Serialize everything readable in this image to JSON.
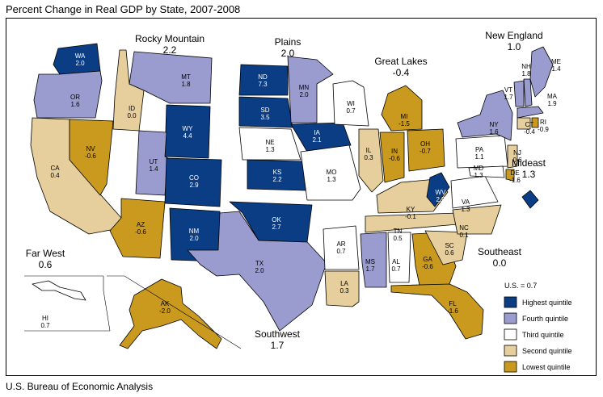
{
  "title": "Percent Change in Real GDP by State, 2007-2008",
  "source": "U.S. Bureau of Economic Analysis",
  "colors": {
    "highest": "#0b3d85",
    "fourth": "#9a9ccf",
    "third": "#ffffff",
    "second": "#e6cf9c",
    "lowest": "#c99a1e"
  },
  "legend": {
    "us_note": "U.S. = 0.7",
    "items": [
      {
        "key": "highest",
        "label": "Highest quintile"
      },
      {
        "key": "fourth",
        "label": "Fourth quintile"
      },
      {
        "key": "third",
        "label": "Third quintile"
      },
      {
        "key": "second",
        "label": "Second quintile"
      },
      {
        "key": "lowest",
        "label": "Lowest quintile"
      }
    ]
  },
  "regions": [
    {
      "name": "Rocky Mountain",
      "value": "2.2"
    },
    {
      "name": "Plains",
      "value": "2.0"
    },
    {
      "name": "Great Lakes",
      "value": "-0.4"
    },
    {
      "name": "New England",
      "value": "1.0"
    },
    {
      "name": "Mideast",
      "value": "1.3"
    },
    {
      "name": "Far West",
      "value": "0.6"
    },
    {
      "name": "Southeast",
      "value": "0.0"
    },
    {
      "name": "Southwest",
      "value": "1.7"
    }
  ],
  "states": [
    {
      "abbr": "WA",
      "value": "2.0",
      "q": "highest"
    },
    {
      "abbr": "OR",
      "value": "1.6",
      "q": "fourth"
    },
    {
      "abbr": "CA",
      "value": "0.4",
      "q": "second"
    },
    {
      "abbr": "NV",
      "value": "-0.6",
      "q": "lowest"
    },
    {
      "abbr": "ID",
      "value": "0.0",
      "q": "second"
    },
    {
      "abbr": "MT",
      "value": "1.8",
      "q": "fourth"
    },
    {
      "abbr": "WY",
      "value": "4.4",
      "q": "highest"
    },
    {
      "abbr": "UT",
      "value": "1.4",
      "q": "fourth"
    },
    {
      "abbr": "CO",
      "value": "2.9",
      "q": "highest"
    },
    {
      "abbr": "AZ",
      "value": "-0.6",
      "q": "lowest"
    },
    {
      "abbr": "NM",
      "value": "2.0",
      "q": "highest"
    },
    {
      "abbr": "ND",
      "value": "7.3",
      "q": "highest"
    },
    {
      "abbr": "SD",
      "value": "3.5",
      "q": "highest"
    },
    {
      "abbr": "NE",
      "value": "1.3",
      "q": "third"
    },
    {
      "abbr": "KS",
      "value": "2.2",
      "q": "highest"
    },
    {
      "abbr": "OK",
      "value": "2.7",
      "q": "highest"
    },
    {
      "abbr": "TX",
      "value": "2.0",
      "q": "fourth"
    },
    {
      "abbr": "MN",
      "value": "2.0",
      "q": "fourth"
    },
    {
      "abbr": "IA",
      "value": "2.1",
      "q": "highest"
    },
    {
      "abbr": "MO",
      "value": "1.3",
      "q": "third"
    },
    {
      "abbr": "AR",
      "value": "0.7",
      "q": "third"
    },
    {
      "abbr": "LA",
      "value": "0.3",
      "q": "second"
    },
    {
      "abbr": "WI",
      "value": "0.7",
      "q": "third"
    },
    {
      "abbr": "IL",
      "value": "0.3",
      "q": "second"
    },
    {
      "abbr": "MI",
      "value": "-1.5",
      "q": "lowest"
    },
    {
      "abbr": "IN",
      "value": "-0.6",
      "q": "lowest"
    },
    {
      "abbr": "OH",
      "value": "-0.7",
      "q": "lowest"
    },
    {
      "abbr": "KY",
      "value": "-0.1",
      "q": "second"
    },
    {
      "abbr": "TN",
      "value": "0.5",
      "q": "second"
    },
    {
      "abbr": "MS",
      "value": "1.7",
      "q": "fourth"
    },
    {
      "abbr": "AL",
      "value": "0.7",
      "q": "third"
    },
    {
      "abbr": "GA",
      "value": "-0.6",
      "q": "lowest"
    },
    {
      "abbr": "FL",
      "value": "-1.6",
      "q": "lowest"
    },
    {
      "abbr": "SC",
      "value": "0.6",
      "q": "second"
    },
    {
      "abbr": "NC",
      "value": "0.1",
      "q": "second"
    },
    {
      "abbr": "VA",
      "value": "1.3",
      "q": "third"
    },
    {
      "abbr": "WV",
      "value": "2.5",
      "q": "highest"
    },
    {
      "abbr": "PA",
      "value": "1.1",
      "q": "third"
    },
    {
      "abbr": "NY",
      "value": "1.6",
      "q": "fourth"
    },
    {
      "abbr": "NJ",
      "value": "0.6",
      "q": "second"
    },
    {
      "abbr": "DE",
      "value": "-1.6",
      "q": "lowest"
    },
    {
      "abbr": "MD",
      "value": "1.3",
      "q": "third"
    },
    {
      "abbr": "DC",
      "value": "3.0",
      "q": "highest"
    },
    {
      "abbr": "VT",
      "value": "1.7",
      "q": "fourth"
    },
    {
      "abbr": "NH",
      "value": "1.8",
      "q": "fourth"
    },
    {
      "abbr": "ME",
      "value": "1.4",
      "q": "fourth"
    },
    {
      "abbr": "MA",
      "value": "1.9",
      "q": "fourth"
    },
    {
      "abbr": "CT",
      "value": "-0.4",
      "q": "second"
    },
    {
      "abbr": "RI",
      "value": "-0.9",
      "q": "lowest"
    },
    {
      "abbr": "HI",
      "value": "0.7",
      "q": "third"
    },
    {
      "abbr": "AK",
      "value": "-2.0",
      "q": "lowest"
    }
  ]
}
